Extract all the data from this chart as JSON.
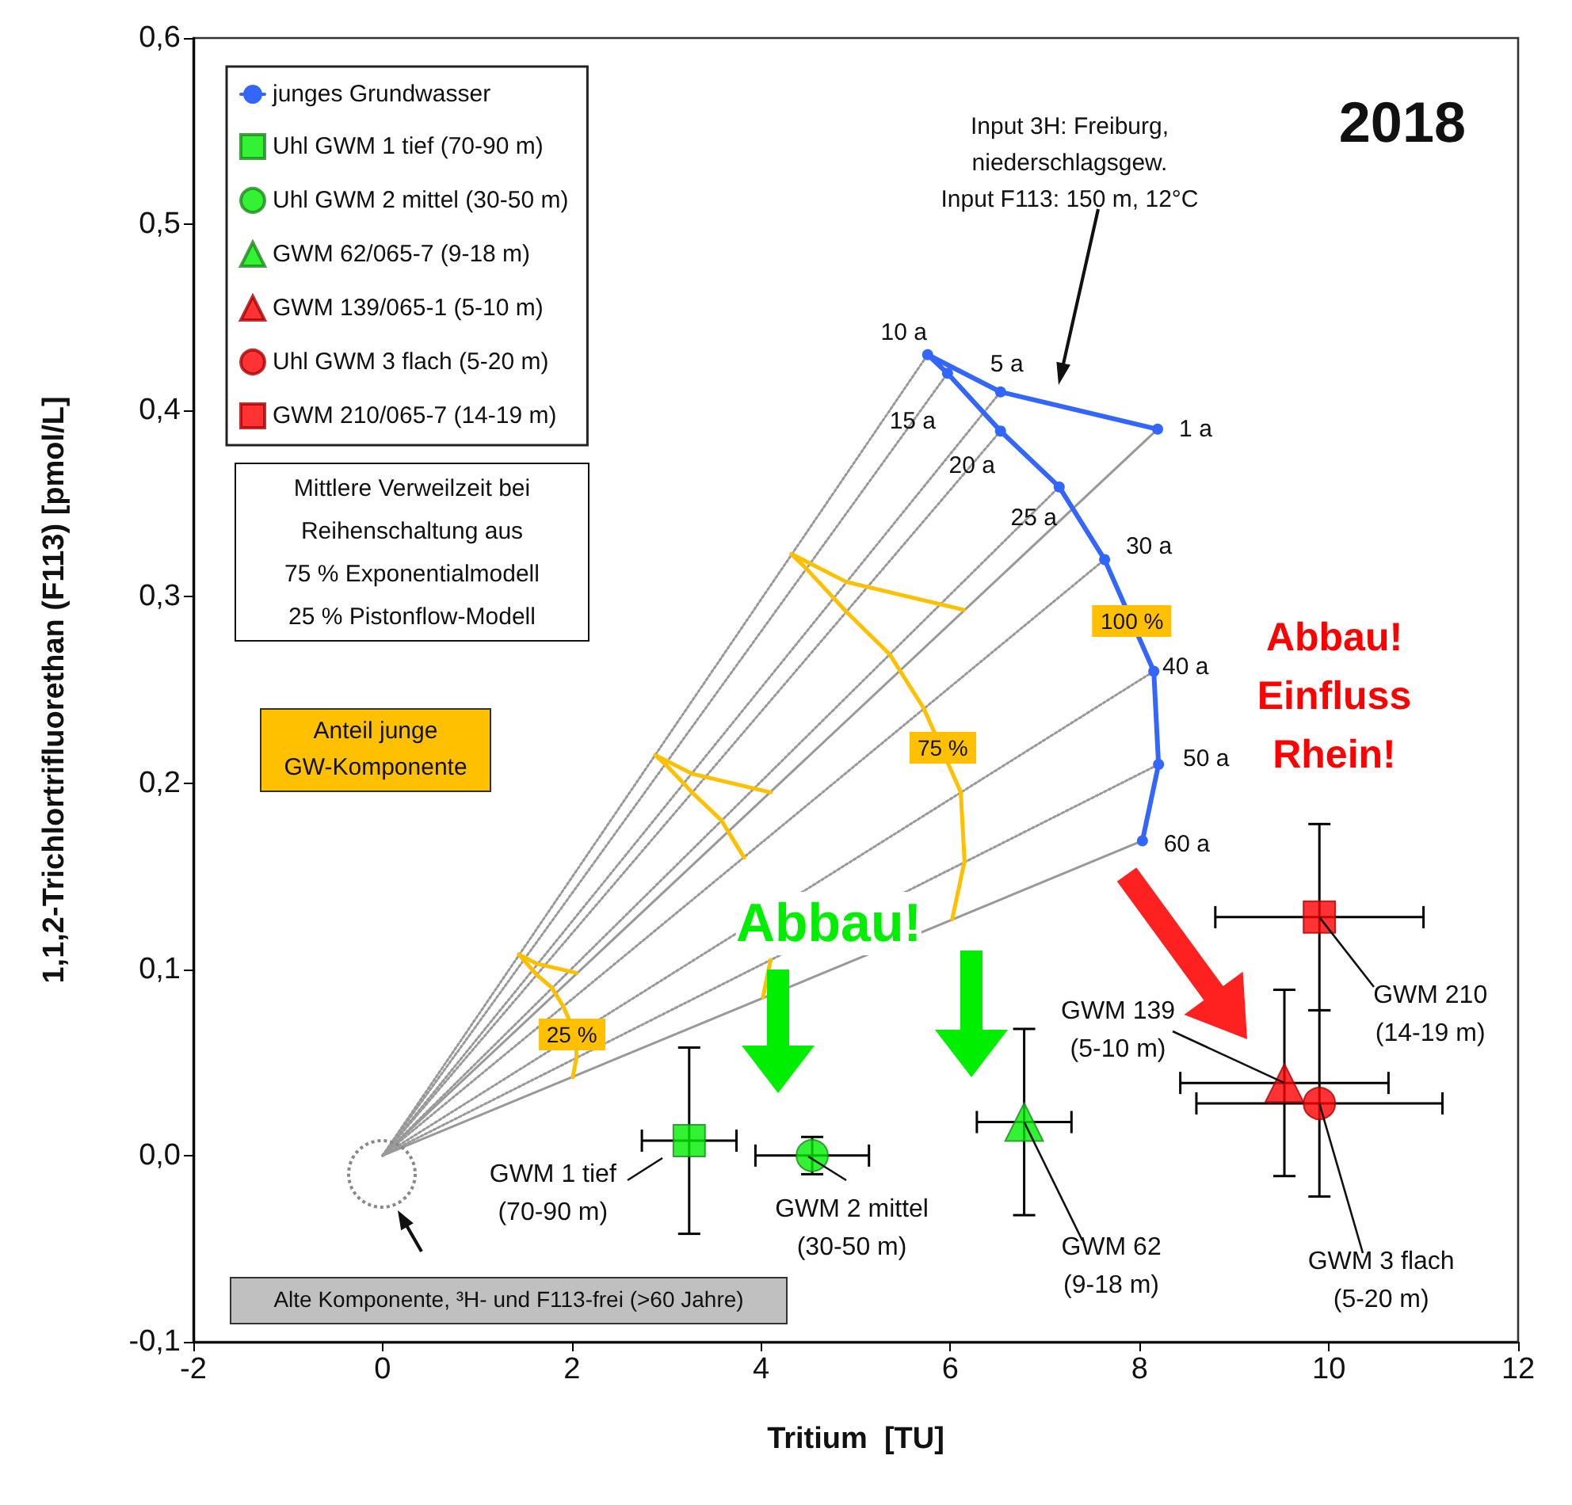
{
  "chart_data": {
    "type": "line",
    "title": "2018",
    "xlabel": "Tritium  [TU]",
    "ylabel": "1,1,2-Trichlortrifluorethan (F113) [pmol/L]",
    "xlim": [
      -2,
      12
    ],
    "ylim": [
      -0.1,
      0.6
    ],
    "xticks": [
      -2,
      0,
      2,
      4,
      6,
      8,
      10,
      12
    ],
    "yticks": [
      {
        "value": -0.1,
        "label": "-0,1"
      },
      {
        "value": 0,
        "label": "0,0"
      },
      {
        "value": 0.1,
        "label": "0,1"
      },
      {
        "value": 0.2,
        "label": "0,2"
      },
      {
        "value": 0.3,
        "label": "0,3"
      },
      {
        "value": 0.4,
        "label": "0,4"
      },
      {
        "value": 0.5,
        "label": "0,5"
      },
      {
        "value": 0.6,
        "label": "0,6"
      }
    ],
    "grid": false,
    "legend": "top left",
    "series": [
      {
        "color": "#999999",
        "line_style": "solid",
        "x": [
          0,
          8.19
        ],
        "values": [
          0,
          0.39
        ]
      },
      {
        "color": "#999999",
        "line_style": "dotted",
        "x": [
          0,
          6.53
        ],
        "values": [
          0,
          0.41
        ]
      },
      {
        "color": "#999999",
        "line_style": "dotted",
        "x": [
          0,
          5.76
        ],
        "values": [
          0,
          0.43
        ]
      },
      {
        "color": "#999999",
        "line_style": "dotted",
        "x": [
          0,
          5.97
        ],
        "values": [
          0,
          0.42
        ]
      },
      {
        "color": "#999999",
        "line_style": "dotted",
        "x": [
          0,
          6.53
        ],
        "values": [
          0,
          0.389
        ]
      },
      {
        "color": "#999999",
        "line_style": "dotted",
        "x": [
          0,
          7.15
        ],
        "values": [
          0,
          0.359
        ]
      },
      {
        "color": "#999999",
        "line_style": "dotted",
        "x": [
          0,
          7.63
        ],
        "values": [
          0,
          0.32
        ]
      },
      {
        "color": "#999999",
        "line_style": "dotted",
        "x": [
          0,
          8.15
        ],
        "values": [
          0,
          0.26
        ]
      },
      {
        "color": "#999999",
        "line_style": "dotted",
        "x": [
          0,
          8.2
        ],
        "values": [
          0,
          0.21
        ]
      },
      {
        "color": "#999999",
        "line_style": "solid",
        "x": [
          0,
          8.03
        ],
        "values": [
          0,
          0.169
        ]
      },
      {
        "color": "#ffc000",
        "line_style": "solid",
        "x": [
          2.05,
          1.63,
          1.44,
          1.49,
          1.63,
          1.79,
          1.91,
          2.04,
          2.05,
          2.01
        ],
        "values": [
          0.098,
          0.103,
          0.108,
          0.105,
          0.097,
          0.09,
          0.08,
          0.065,
          0.053,
          0.042
        ]
      },
      {
        "color": "#ffc000",
        "line_style": "solid",
        "x": [
          4.1,
          3.27,
          2.88,
          2.99,
          3.27,
          3.58,
          3.82,
          4.08,
          4.1,
          4.02
        ],
        "values": [
          0.195,
          0.205,
          0.215,
          0.21,
          0.195,
          0.18,
          0.16,
          null,
          0.105,
          0.085
        ]
      },
      {
        "color": "#ffc000",
        "line_style": "solid",
        "x": [
          6.14,
          4.9,
          4.32,
          4.48,
          4.9,
          5.36,
          5.72,
          6.11,
          6.15,
          6.02
        ],
        "values": [
          0.293,
          0.308,
          0.323,
          0.315,
          0.292,
          0.269,
          0.24,
          0.195,
          0.158,
          0.127
        ]
      },
      {
        "name": "junges Grundwasser",
        "color": "#3366ff",
        "marker": "circle",
        "line_style": "solid",
        "x": [
          8.19,
          6.53,
          5.76,
          5.97,
          6.53,
          7.15,
          7.63,
          8.15,
          8.2,
          8.03
        ],
        "values": [
          0.39,
          0.41,
          0.43,
          0.42,
          0.389,
          0.359,
          0.32,
          0.26,
          0.21,
          0.169
        ]
      },
      {
        "name": "Uhl GWM 1 tief (70-90 m)",
        "type": "scatter",
        "color": "#00ee00",
        "marker": "square",
        "x": [
          3.24
        ],
        "values": [
          0.008
        ],
        "errors": [
          0.05
        ],
        "xerrors": [
          0.5
        ]
      },
      {
        "name": "Uhl GWM 2 mittel (30-50 m)",
        "type": "scatter",
        "color": "#00ee00",
        "marker": "circle",
        "x": [
          4.54
        ],
        "values": [
          0.0
        ],
        "errors": [
          0.01
        ],
        "xerrors": [
          0.6
        ]
      },
      {
        "name": "GWM 62/065-7 (9-18 m)",
        "type": "scatter",
        "color": "#00ee00",
        "marker": "triangle",
        "x": [
          6.78
        ],
        "values": [
          0.018
        ],
        "errors": [
          0.05
        ],
        "xerrors": [
          0.5
        ]
      },
      {
        "name": "GWM 139/065-1 (5-10 m)",
        "type": "scatter",
        "color": "#ff0000",
        "marker": "triangle",
        "x": [
          9.53
        ],
        "values": [
          0.039
        ],
        "errors": [
          0.05
        ],
        "xerrors": [
          1.1
        ]
      },
      {
        "name": "Uhl GWM 3 flach (5-20 m)",
        "type": "scatter",
        "color": "#ff0000",
        "marker": "circle",
        "x": [
          9.9
        ],
        "values": [
          0.028
        ],
        "errors": [
          0.05
        ],
        "xerrors": [
          1.3
        ]
      },
      {
        "name": "GWM 210/065-7 (14-19 m)",
        "type": "scatter",
        "color": "#ff0000",
        "marker": "square",
        "x": [
          9.9
        ],
        "values": [
          0.128
        ],
        "errors": [
          0.05
        ],
        "xerrors": [
          1.1
        ]
      }
    ],
    "annotations": [
      "Input 3H: Freiburg,\nniederschlagsgew.\nInput F113: 150 m, 12°C",
      "Mittlere Verweilzeit bei\nReihenschaltung aus\n75 % Exponentialmodell\n25 % Pistonflow-Modell",
      "Anteil junge\nGW-Komponente",
      "Alte Komponente, ³H- und F113-frei (>60 Jahre)",
      "Abbau!",
      "Abbau!\nEinfluss\nRhein!",
      {
        "text": "25 %",
        "x": 2.0,
        "y": 0.065
      },
      {
        "text": "75 %",
        "x": 5.92,
        "y": 0.219
      },
      {
        "text": "100 %",
        "x": 7.92,
        "y": 0.287
      },
      {
        "text": "GWM 1 tief\n(70-90 m)",
        "x": 3.24,
        "y": 0.008
      },
      {
        "text": "GWM 2 mittel\n(30-50 m)",
        "x": 4.54,
        "y": 0.0
      },
      {
        "text": "GWM 62\n(9-18 m)",
        "x": 6.78,
        "y": 0.018
      },
      {
        "text": "GWM 139\n(5-10 m)",
        "x": 9.53,
        "y": 0.039
      },
      {
        "text": "GWM 210\n(14-19 m)",
        "x": 9.9,
        "y": 0.128
      },
      {
        "text": "GWM 3 flach\n(5-20 m)",
        "x": 9.9,
        "y": 0.028
      },
      {
        "text": "1 a",
        "x": 8.19,
        "y": 0.39
      },
      {
        "text": "5 a",
        "x": 6.53,
        "y": 0.41
      },
      {
        "text": "10 a",
        "x": 5.76,
        "y": 0.43
      },
      {
        "text": "15 a",
        "x": 5.97,
        "y": 0.42
      },
      {
        "text": "20 a",
        "x": 6.53,
        "y": 0.389
      },
      {
        "text": "25 a",
        "x": 7.15,
        "y": 0.359
      },
      {
        "text": "30 a",
        "x": 7.63,
        "y": 0.32
      },
      {
        "text": "40 a",
        "x": 8.15,
        "y": 0.26
      },
      {
        "text": "50 a",
        "x": 8.2,
        "y": 0.21
      },
      {
        "text": "60 a",
        "x": 8.03,
        "y": 0.169
      }
    ]
  }
}
